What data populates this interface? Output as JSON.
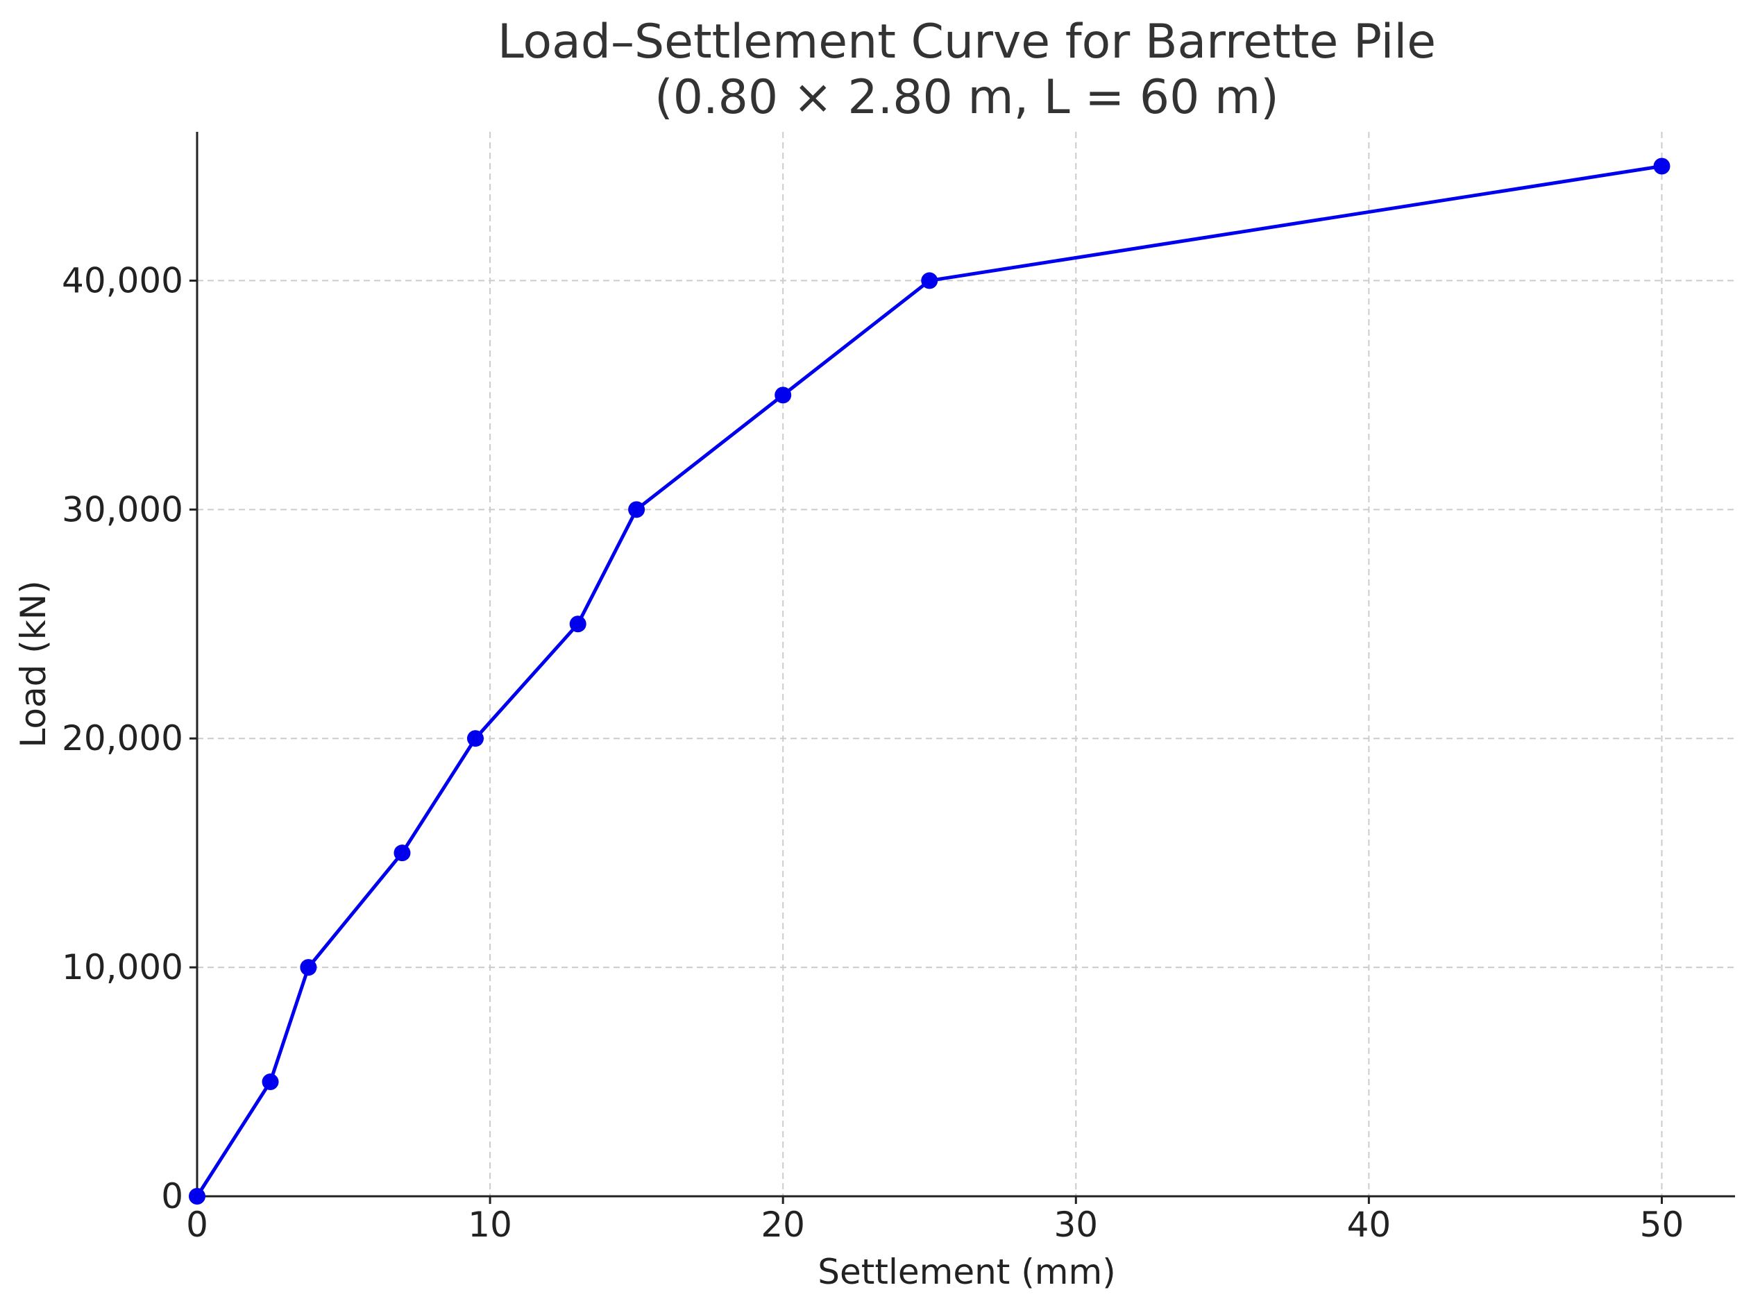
{
  "chart_data": {
    "type": "line",
    "title": "Load–Settlement Curve for Barrette Pile",
    "subtitle": "(0.80 × 2.80 m, L = 60 m)",
    "xlabel": "Settlement (mm)",
    "ylabel": "Load (kN)",
    "xlim": [
      0,
      52.5
    ],
    "ylim": [
      0,
      46500
    ],
    "xticks": [
      0,
      10,
      20,
      30,
      40,
      50
    ],
    "xtick_labels": [
      "0",
      "10",
      "20",
      "30",
      "40",
      "50"
    ],
    "yticks": [
      0,
      10000,
      20000,
      30000,
      40000
    ],
    "ytick_labels": [
      "0",
      "10,000",
      "20,000",
      "30,000",
      "40,000"
    ],
    "grid": true,
    "series": [
      {
        "color": "#0000ee",
        "marker": "circle",
        "x": [
          0,
          2.5,
          3.8,
          7,
          9.5,
          13,
          15,
          20,
          25,
          50
        ],
        "y": [
          0,
          5000,
          10000,
          15000,
          20000,
          25000,
          30000,
          35000,
          40000,
          45000
        ]
      }
    ]
  }
}
